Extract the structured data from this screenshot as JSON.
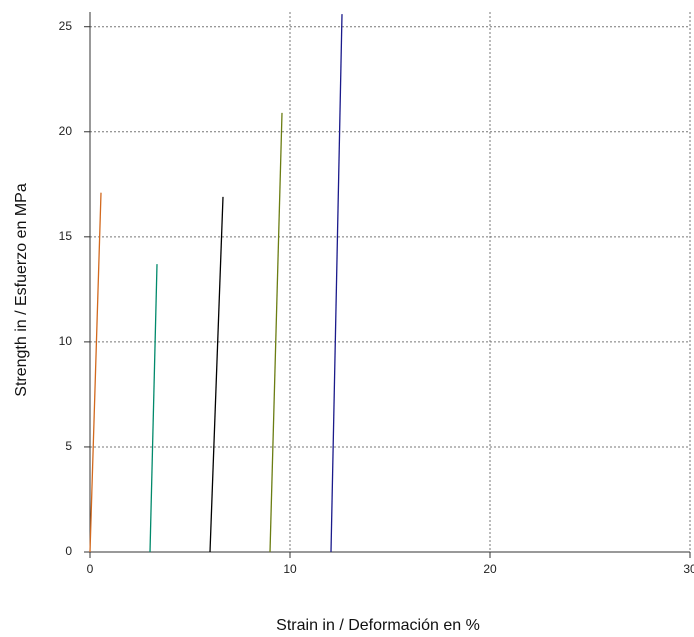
{
  "chart_data": {
    "type": "line",
    "x_label": "Strain in / Deformación en %",
    "y_label": "Strength in / Esfuerzo en MPa",
    "xlim": [
      0,
      30
    ],
    "ylim": [
      0,
      25.7
    ],
    "xticks": [
      0,
      10,
      20,
      30
    ],
    "yticks": [
      0,
      5,
      10,
      15,
      20,
      25
    ],
    "grid": true,
    "series": [
      {
        "color": "#d2691e",
        "x": [
          0,
          0.55
        ],
        "values": [
          0,
          17.1
        ]
      },
      {
        "color": "#00896b",
        "x": [
          3.0,
          3.35
        ],
        "values": [
          0,
          13.7
        ]
      },
      {
        "color": "#000000",
        "x": [
          6.0,
          6.65
        ],
        "values": [
          0,
          16.9
        ]
      },
      {
        "color": "#6b7d12",
        "x": [
          9.0,
          9.6
        ],
        "values": [
          0,
          20.9
        ]
      },
      {
        "color": "#1a1a8b",
        "x": [
          12.05,
          12.6
        ],
        "values": [
          0,
          25.6
        ]
      }
    ]
  }
}
